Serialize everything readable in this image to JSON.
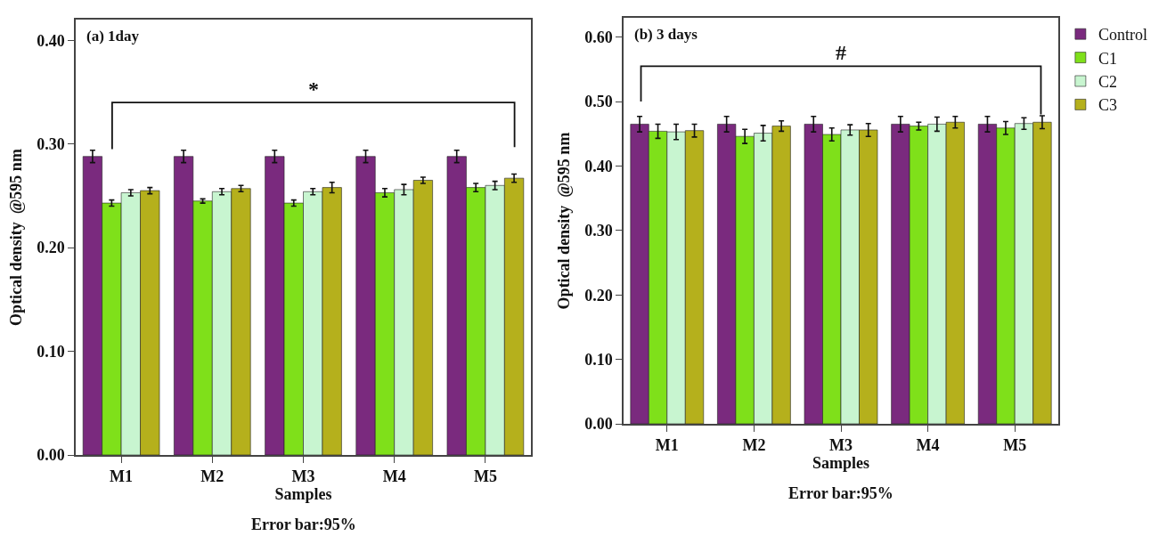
{
  "chart_data": [
    {
      "type": "bar",
      "title": "(a) 1day",
      "xlabel": "Samples",
      "ylabel": "Optical density  @595 nm",
      "categories": [
        "M1",
        "M2",
        "M3",
        "M4",
        "M5"
      ],
      "series": [
        {
          "color": "#7a2a7e",
          "values": [
            0.288,
            0.288,
            0.288,
            0.288,
            0.288
          ],
          "errors": [
            0.006,
            0.006,
            0.006,
            0.006,
            0.006
          ]
        },
        {
          "color": "#7fe01a",
          "values": [
            0.243,
            0.245,
            0.243,
            0.253,
            0.258
          ],
          "errors": [
            0.003,
            0.002,
            0.003,
            0.004,
            0.004
          ]
        },
        {
          "color": "#c8f5d0",
          "values": [
            0.253,
            0.254,
            0.254,
            0.256,
            0.26
          ],
          "errors": [
            0.003,
            0.003,
            0.003,
            0.005,
            0.004
          ]
        },
        {
          "color": "#b5b01c",
          "values": [
            0.255,
            0.257,
            0.258,
            0.265,
            0.267
          ],
          "errors": [
            0.003,
            0.003,
            0.005,
            0.003,
            0.004
          ]
        }
      ],
      "ylim": [
        0,
        0.42
      ],
      "yticks": [
        {
          "value": 0,
          "label": "0.00"
        },
        {
          "value": 0.1,
          "label": "0.10"
        },
        {
          "value": 0.2,
          "label": "0.20"
        },
        {
          "value": 0.3,
          "label": "0.30"
        },
        {
          "value": 0.4,
          "label": "0.40"
        }
      ],
      "annotations": [
        "*",
        "Error bar:95%"
      ],
      "grid": false
    },
    {
      "type": "bar",
      "title": "(b) 3 days",
      "xlabel": "Samples",
      "ylabel": "Optical density  @595 nm",
      "categories": [
        "M1",
        "M2",
        "M3",
        "M4",
        "M5"
      ],
      "series": [
        {
          "name": "Control",
          "color": "#7a2a7e",
          "values": [
            0.465,
            0.465,
            0.465,
            0.465,
            0.465
          ],
          "errors": [
            0.012,
            0.012,
            0.012,
            0.012,
            0.012
          ]
        },
        {
          "name": "C1",
          "color": "#7fe01a",
          "values": [
            0.454,
            0.446,
            0.449,
            0.462,
            0.459
          ],
          "errors": [
            0.011,
            0.011,
            0.01,
            0.006,
            0.01
          ]
        },
        {
          "name": "C2",
          "color": "#c8f5d0",
          "values": [
            0.453,
            0.451,
            0.456,
            0.465,
            0.466
          ],
          "errors": [
            0.012,
            0.012,
            0.008,
            0.011,
            0.009
          ]
        },
        {
          "name": "C3",
          "color": "#b5b01c",
          "values": [
            0.455,
            0.462,
            0.456,
            0.468,
            0.468
          ],
          "errors": [
            0.01,
            0.008,
            0.01,
            0.009,
            0.01
          ]
        }
      ],
      "ylim": [
        0,
        0.63
      ],
      "yticks": [
        {
          "value": 0,
          "label": "0.00"
        },
        {
          "value": 0.1,
          "label": "0.10"
        },
        {
          "value": 0.2,
          "label": "0.20"
        },
        {
          "value": 0.3,
          "label": "0.30"
        },
        {
          "value": 0.4,
          "label": "0.40"
        },
        {
          "value": 0.5,
          "label": "0.50"
        },
        {
          "value": 0.6,
          "label": "0.60"
        }
      ],
      "annotations": [
        "#",
        "Error bar:95%"
      ],
      "grid": false,
      "legend": "top right"
    }
  ]
}
